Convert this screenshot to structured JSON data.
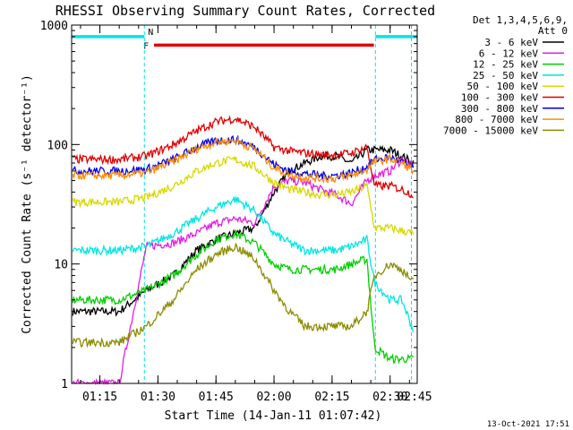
{
  "chart_data": {
    "type": "line",
    "title": "RHESSI Observing Summary Count Rates, Corrected",
    "xlabel": "Start Time (14-Jan-11 01:07:42)",
    "ylabel": "Corrected Count Rate (s⁻¹ detector⁻¹)",
    "ylog": true,
    "ylim": [
      1,
      1000
    ],
    "xlim": [
      7.7,
      97.0
    ],
    "x_units": "minutes after 01:00 UT",
    "x_ticks": [
      {
        "x": 15,
        "label": "01:15"
      },
      {
        "x": 30,
        "label": "01:30"
      },
      {
        "x": 45,
        "label": "01:45"
      },
      {
        "x": 60,
        "label": "02:00"
      },
      {
        "x": 75,
        "label": "02:15"
      },
      {
        "x": 90,
        "label": "02:30"
      },
      {
        "x": 105,
        "label": "02:45"
      }
    ],
    "y_ticks": [
      {
        "y": 1,
        "label": "1"
      },
      {
        "y": 10,
        "label": "10"
      },
      {
        "y": 100,
        "label": "100"
      },
      {
        "y": 1000,
        "label": "1000"
      }
    ],
    "legend": {
      "placement": "right",
      "header": [
        "Det 1,3,4,5,6,9,",
        "Att 0"
      ]
    },
    "flags": [
      {
        "label": "N",
        "color": "#00e5e5",
        "start": 7.7,
        "end": 26.5,
        "y": 800
      },
      {
        "label": "N",
        "color": "#00e5e5",
        "start": 86.2,
        "end": 97.0,
        "y": 800
      },
      {
        "label": "F",
        "color": "#e00000",
        "start": 29.0,
        "end": 85.8,
        "y": 680
      }
    ],
    "night_boundaries": [
      26.5,
      86.2,
      95.5
    ],
    "series": [
      {
        "name": "3 - 6 keV",
        "color": "#000000",
        "x": [
          8,
          20,
          27,
          34,
          40,
          45,
          50,
          55,
          60,
          64,
          68,
          72,
          76,
          80,
          84,
          86,
          90,
          93,
          96
        ],
        "y": [
          4,
          4,
          6,
          8,
          13,
          16,
          18,
          20,
          40,
          60,
          70,
          80,
          80,
          70,
          90,
          90,
          90,
          80,
          70
        ]
      },
      {
        "name": "6 - 12 keV",
        "color": "#e020e0",
        "x": [
          8,
          20,
          27,
          34,
          40,
          45,
          50,
          55,
          60,
          64,
          68,
          72,
          76,
          80,
          84,
          86,
          90,
          93,
          96
        ],
        "y": [
          1,
          1,
          14,
          15,
          18,
          22,
          24,
          22,
          45,
          50,
          48,
          42,
          38,
          32,
          50,
          55,
          60,
          75,
          65
        ]
      },
      {
        "name": "12 - 25 keV",
        "color": "#00d000",
        "x": [
          8,
          20,
          27,
          34,
          40,
          45,
          50,
          55,
          60,
          64,
          68,
          72,
          76,
          80,
          84,
          86,
          90,
          93,
          96
        ],
        "y": [
          5,
          5,
          6,
          8,
          12,
          16,
          18,
          15,
          10,
          9,
          9,
          9,
          9,
          10,
          11,
          2,
          1.6,
          1.6,
          1.6
        ]
      },
      {
        "name": "25 - 50 keV",
        "color": "#00e5e5",
        "x": [
          8,
          20,
          27,
          34,
          40,
          45,
          50,
          55,
          60,
          64,
          68,
          72,
          76,
          80,
          84,
          86,
          90,
          93,
          96
        ],
        "y": [
          13,
          13,
          14,
          18,
          24,
          30,
          35,
          28,
          18,
          15,
          13,
          13,
          13,
          14,
          16,
          7,
          5,
          5,
          2.8
        ]
      },
      {
        "name": "50 - 100 keV",
        "color": "#d8d800",
        "x": [
          8,
          20,
          27,
          34,
          40,
          45,
          50,
          55,
          60,
          64,
          68,
          72,
          76,
          80,
          84,
          86,
          90,
          93,
          96
        ],
        "y": [
          33,
          33,
          36,
          45,
          60,
          70,
          75,
          65,
          48,
          42,
          40,
          38,
          38,
          40,
          45,
          20,
          20,
          19,
          18
        ]
      },
      {
        "name": "100 - 300 keV",
        "color": "#e00000",
        "x": [
          8,
          20,
          27,
          34,
          40,
          45,
          50,
          55,
          60,
          64,
          68,
          72,
          76,
          80,
          84,
          86,
          90,
          93,
          96
        ],
        "y": [
          75,
          75,
          80,
          100,
          130,
          155,
          165,
          140,
          95,
          88,
          85,
          82,
          82,
          85,
          95,
          45,
          45,
          42,
          38
        ]
      },
      {
        "name": "300 - 800 keV",
        "color": "#0000e8",
        "x": [
          8,
          20,
          27,
          34,
          40,
          45,
          50,
          55,
          60,
          64,
          68,
          72,
          76,
          80,
          84,
          86,
          90,
          93,
          96
        ],
        "y": [
          60,
          60,
          62,
          75,
          95,
          108,
          110,
          95,
          68,
          60,
          57,
          55,
          55,
          58,
          65,
          75,
          78,
          72,
          62
        ]
      },
      {
        "name": "800 - 7000 keV",
        "color": "#ff8c00",
        "x": [
          8,
          20,
          27,
          34,
          40,
          45,
          50,
          55,
          60,
          64,
          68,
          72,
          76,
          80,
          84,
          86,
          90,
          93,
          96
        ],
        "y": [
          55,
          55,
          58,
          72,
          92,
          105,
          108,
          92,
          64,
          56,
          53,
          52,
          52,
          55,
          62,
          72,
          76,
          70,
          60
        ]
      },
      {
        "name": "7000 - 15000 keV",
        "color": "#8c8c00",
        "x": [
          8,
          20,
          27,
          34,
          40,
          45,
          50,
          55,
          60,
          64,
          68,
          72,
          76,
          80,
          84,
          86,
          90,
          93,
          96
        ],
        "y": [
          2.2,
          2.2,
          3,
          5,
          9,
          12,
          14,
          11,
          6,
          4,
          3,
          3,
          3,
          3,
          4,
          8,
          10,
          9,
          7
        ]
      }
    ]
  },
  "footer": {
    "timestamp": "13-Oct-2021 17:51"
  }
}
